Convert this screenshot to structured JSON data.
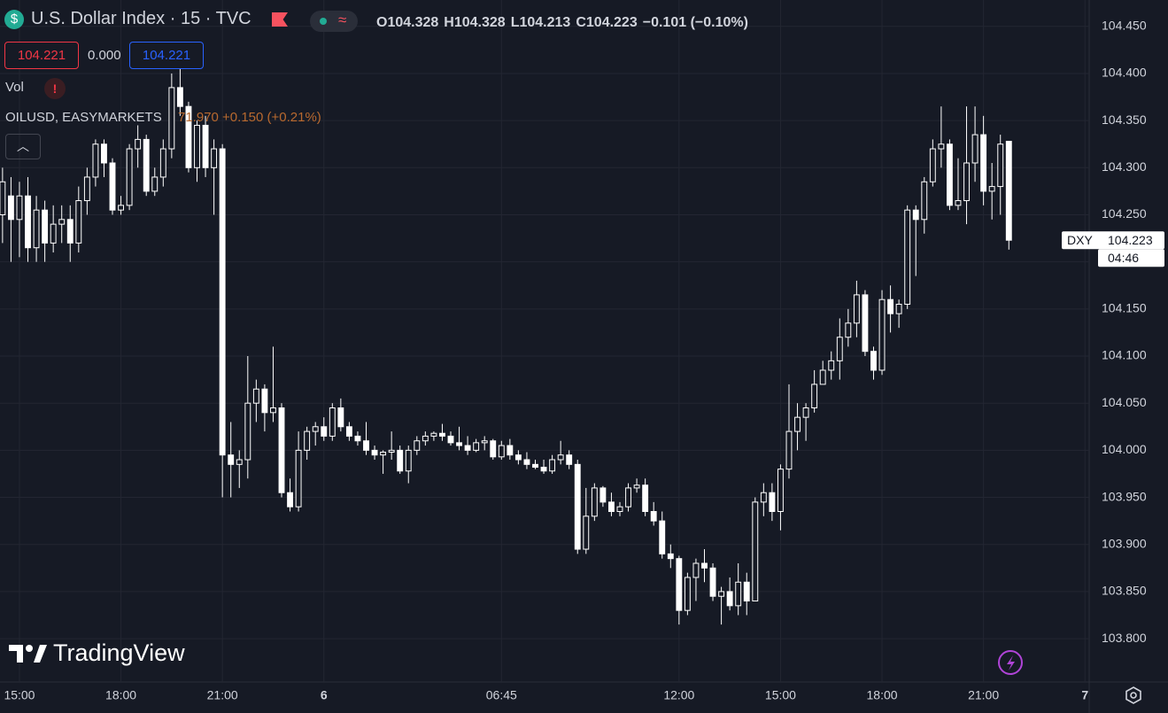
{
  "header": {
    "symbol": "U.S. Dollar Index · 15 · TVC",
    "ohlc": [
      {
        "label": "O",
        "value": 104.328
      },
      {
        "label": "H",
        "value": 104.328
      },
      {
        "label": "L",
        "value": 104.213
      },
      {
        "label": "C",
        "value": 104.223
      }
    ],
    "change": "−0.101 (−0.10%)",
    "sell": 104.221,
    "spread": "0.000",
    "buy": 104.221,
    "vol": "Vol",
    "vol_alert": "!",
    "overlay_symbol": "OILUSD, EASYMARKETS",
    "overlay_values": "71.970 +0.150 (+0.21%)",
    "brand": "TradingView"
  },
  "chart_data": {
    "type": "candlestick",
    "candle_color": "#ffffff",
    "grid": true,
    "ylim": [
      103.754,
      104.478
    ],
    "yticks": [
      {
        "value": 103.8,
        "label": "103.800"
      },
      {
        "value": 103.85,
        "label": "103.850"
      },
      {
        "value": 103.9,
        "label": "103.900"
      },
      {
        "value": 103.95,
        "label": "103.950"
      },
      {
        "value": 104.0,
        "label": "104.000"
      },
      {
        "value": 104.05,
        "label": "104.050"
      },
      {
        "value": 104.1,
        "label": "104.100"
      },
      {
        "value": 104.15,
        "label": "104.150"
      },
      {
        "value": 104.2,
        "label": "104.200"
      },
      {
        "value": 104.25,
        "label": "104.250"
      },
      {
        "value": 104.3,
        "label": "104.300"
      },
      {
        "value": 104.35,
        "label": "104.350"
      },
      {
        "value": 104.4,
        "label": "104.400"
      },
      {
        "value": 104.45,
        "label": "104.450"
      }
    ],
    "xlim": [
      -0.3,
      128.5
    ],
    "xticks": [
      {
        "value": 2,
        "label": "15:00"
      },
      {
        "value": 14,
        "label": "18:00"
      },
      {
        "value": 26,
        "label": "21:00"
      },
      {
        "value": 38,
        "label": "6"
      },
      {
        "value": 59,
        "label": "06:45"
      },
      {
        "value": 80,
        "label": "12:00"
      },
      {
        "value": 92,
        "label": "15:00"
      },
      {
        "value": 104,
        "label": "18:00"
      },
      {
        "value": 116,
        "label": "21:00"
      },
      {
        "value": 128,
        "label": "7"
      }
    ],
    "price_label": {
      "symbol": "DXY",
      "value": 104.223,
      "countdown": "04:46"
    },
    "candles": [
      [
        104.25,
        104.3,
        104.22,
        104.285
      ],
      [
        104.27,
        104.29,
        104.2,
        104.245
      ],
      [
        104.245,
        104.285,
        104.205,
        104.27
      ],
      [
        104.27,
        104.29,
        104.2,
        104.215
      ],
      [
        104.215,
        104.27,
        104.2,
        104.255
      ],
      [
        104.255,
        104.265,
        104.2,
        104.22
      ],
      [
        104.22,
        104.26,
        104.21,
        104.24
      ],
      [
        104.24,
        104.26,
        104.22,
        104.245
      ],
      [
        104.245,
        104.26,
        104.2,
        104.22
      ],
      [
        104.22,
        104.28,
        104.21,
        104.265
      ],
      [
        104.265,
        104.3,
        104.25,
        104.29
      ],
      [
        104.29,
        104.33,
        104.28,
        104.325
      ],
      [
        104.325,
        104.33,
        104.29,
        104.305
      ],
      [
        104.305,
        104.31,
        104.25,
        104.255
      ],
      [
        104.255,
        104.27,
        104.25,
        104.26
      ],
      [
        104.26,
        104.325,
        104.255,
        104.32
      ],
      [
        104.32,
        104.345,
        104.3,
        104.33
      ],
      [
        104.33,
        104.335,
        104.27,
        104.275
      ],
      [
        104.275,
        104.3,
        104.27,
        104.29
      ],
      [
        104.29,
        104.33,
        104.28,
        104.32
      ],
      [
        104.32,
        104.4,
        104.31,
        104.385
      ],
      [
        104.385,
        104.41,
        104.355,
        104.365
      ],
      [
        104.365,
        104.37,
        104.295,
        104.3
      ],
      [
        104.3,
        104.35,
        104.285,
        104.345
      ],
      [
        104.345,
        104.355,
        104.29,
        104.3
      ],
      [
        104.3,
        104.33,
        104.25,
        104.32
      ],
      [
        104.32,
        104.325,
        103.95,
        103.995
      ],
      [
        103.995,
        104.03,
        103.95,
        103.985
      ],
      [
        103.985,
        104.0,
        103.96,
        103.99
      ],
      [
        103.99,
        104.1,
        103.97,
        104.05
      ],
      [
        104.05,
        104.075,
        104.03,
        104.065
      ],
      [
        104.065,
        104.07,
        104.02,
        104.04
      ],
      [
        104.04,
        104.11,
        104.03,
        104.045
      ],
      [
        104.045,
        104.05,
        103.95,
        103.955
      ],
      [
        103.955,
        103.97,
        103.935,
        103.94
      ],
      [
        103.94,
        104.02,
        103.935,
        104.0
      ],
      [
        104.0,
        104.025,
        103.99,
        104.02
      ],
      [
        104.02,
        104.03,
        104.005,
        104.025
      ],
      [
        104.025,
        104.035,
        104.01,
        104.015
      ],
      [
        104.015,
        104.05,
        104.01,
        104.045
      ],
      [
        104.045,
        104.055,
        104.02,
        104.025
      ],
      [
        104.025,
        104.03,
        104.01,
        104.015
      ],
      [
        104.015,
        104.02,
        104.005,
        104.01
      ],
      [
        104.01,
        104.03,
        103.995,
        104.0
      ],
      [
        104.0,
        104.005,
        103.99,
        103.995
      ],
      [
        103.995,
        104.0,
        103.975,
        103.998
      ],
      [
        103.998,
        104.02,
        103.99,
        104.0
      ],
      [
        104.0,
        104.005,
        103.975,
        103.978
      ],
      [
        103.978,
        104.005,
        103.965,
        104.0
      ],
      [
        104.0,
        104.015,
        103.995,
        104.01
      ],
      [
        104.01,
        104.02,
        104.005,
        104.015
      ],
      [
        104.015,
        104.02,
        104.01,
        104.018
      ],
      [
        104.018,
        104.028,
        104.01,
        104.015
      ],
      [
        104.015,
        104.02,
        104.005,
        104.008
      ],
      [
        104.008,
        104.025,
        104.0,
        104.005
      ],
      [
        104.005,
        104.015,
        103.995,
        104.0
      ],
      [
        104.0,
        104.012,
        103.998,
        104.008
      ],
      [
        104.008,
        104.015,
        104.0,
        104.01
      ],
      [
        104.01,
        104.012,
        103.99,
        103.993
      ],
      [
        103.993,
        104.01,
        103.99,
        104.005
      ],
      [
        104.005,
        104.012,
        103.99,
        103.995
      ],
      [
        103.995,
        104.0,
        103.985,
        103.99
      ],
      [
        103.99,
        103.998,
        103.98,
        103.985
      ],
      [
        103.985,
        103.99,
        103.98,
        103.982
      ],
      [
        103.982,
        103.99,
        103.975,
        103.978
      ],
      [
        103.978,
        103.995,
        103.975,
        103.99
      ],
      [
        103.99,
        104.01,
        103.985,
        103.995
      ],
      [
        103.995,
        104.0,
        103.98,
        103.985
      ],
      [
        103.985,
        103.99,
        103.89,
        103.895
      ],
      [
        103.895,
        103.96,
        103.89,
        103.93
      ],
      [
        103.93,
        103.965,
        103.925,
        103.96
      ],
      [
        103.96,
        103.962,
        103.94,
        103.945
      ],
      [
        103.945,
        103.955,
        103.93,
        103.935
      ],
      [
        103.935,
        103.945,
        103.93,
        103.94
      ],
      [
        103.94,
        103.965,
        103.935,
        103.96
      ],
      [
        103.96,
        103.97,
        103.955,
        103.963
      ],
      [
        103.963,
        103.97,
        103.93,
        103.935
      ],
      [
        103.935,
        103.945,
        103.92,
        103.925
      ],
      [
        103.925,
        103.935,
        103.885,
        103.89
      ],
      [
        103.89,
        103.9,
        103.875,
        103.885
      ],
      [
        103.885,
        103.888,
        103.815,
        103.83
      ],
      [
        103.83,
        103.87,
        103.825,
        103.865
      ],
      [
        103.865,
        103.885,
        103.84,
        103.88
      ],
      [
        103.88,
        103.895,
        103.86,
        103.875
      ],
      [
        103.875,
        103.88,
        103.84,
        103.845
      ],
      [
        103.845,
        103.855,
        103.815,
        103.85
      ],
      [
        103.85,
        103.865,
        103.83,
        103.835
      ],
      [
        103.835,
        103.88,
        103.825,
        103.86
      ],
      [
        103.86,
        103.87,
        103.825,
        103.84
      ],
      [
        103.84,
        103.95,
        103.84,
        103.945
      ],
      [
        103.945,
        103.965,
        103.93,
        103.955
      ],
      [
        103.955,
        103.965,
        103.925,
        103.935
      ],
      [
        103.935,
        103.985,
        103.915,
        103.98
      ],
      [
        103.98,
        104.07,
        103.97,
        104.02
      ],
      [
        104.02,
        104.05,
        104.0,
        104.035
      ],
      [
        104.035,
        104.05,
        104.01,
        104.045
      ],
      [
        104.045,
        104.085,
        104.04,
        104.07
      ],
      [
        104.07,
        104.095,
        104.07,
        104.085
      ],
      [
        104.085,
        104.105,
        104.075,
        104.095
      ],
      [
        104.095,
        104.14,
        104.075,
        104.12
      ],
      [
        104.12,
        104.15,
        104.11,
        104.135
      ],
      [
        104.135,
        104.18,
        104.12,
        104.165
      ],
      [
        104.165,
        104.17,
        104.1,
        104.105
      ],
      [
        104.105,
        104.11,
        104.075,
        104.085
      ],
      [
        104.085,
        104.17,
        104.08,
        104.16
      ],
      [
        104.16,
        104.175,
        104.125,
        104.145
      ],
      [
        104.145,
        104.16,
        104.13,
        104.155
      ],
      [
        104.155,
        104.26,
        104.15,
        104.255
      ],
      [
        104.255,
        104.26,
        104.185,
        104.245
      ],
      [
        104.245,
        104.29,
        104.23,
        104.285
      ],
      [
        104.285,
        104.33,
        104.28,
        104.32
      ],
      [
        104.32,
        104.365,
        104.3,
        104.325
      ],
      [
        104.325,
        104.33,
        104.255,
        104.26
      ],
      [
        104.26,
        104.31,
        104.255,
        104.265
      ],
      [
        104.265,
        104.365,
        104.24,
        104.305
      ],
      [
        104.305,
        104.365,
        104.285,
        104.335
      ],
      [
        104.335,
        104.355,
        104.26,
        104.275
      ],
      [
        104.275,
        104.305,
        104.245,
        104.28
      ],
      [
        104.28,
        104.335,
        104.25,
        104.325
      ],
      [
        104.328,
        104.328,
        104.213,
        104.223
      ]
    ]
  }
}
